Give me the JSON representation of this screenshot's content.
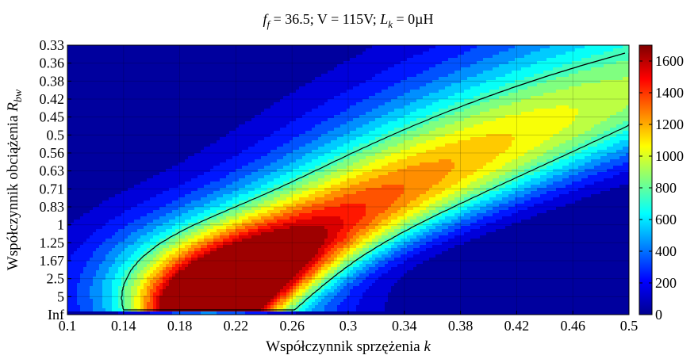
{
  "chart_data": {
    "type": "heatmap",
    "title": {
      "parts": [
        "f",
        "f",
        " = 36.5; V = 115V;  ",
        "L",
        "k",
        " = 0µH"
      ]
    },
    "xlabel": {
      "main": "Współczynnik sprzężenia",
      "symbol": "k"
    },
    "ylabel": {
      "main": "Współczynnik obciążenia",
      "symbol": "R",
      "subscript": "bw"
    },
    "x_ticks": [
      "0.1",
      "0.14",
      "0.18",
      "0.22",
      "0.26",
      "0.3",
      "0.34",
      "0.38",
      "0.42",
      "0.46",
      "0.5"
    ],
    "x_range": [
      0.1,
      0.5
    ],
    "y_ticks": [
      "0.33",
      "0.36",
      "0.38",
      "0.42",
      "0.45",
      "0.5",
      "0.56",
      "0.63",
      "0.71",
      "0.83",
      "1",
      "1.25",
      "1.67",
      "2.5",
      "5",
      "Inf"
    ],
    "colorbar": {
      "range": [
        0,
        1700
      ],
      "ticks": [
        0,
        200,
        400,
        600,
        800,
        1000,
        1200,
        1400,
        1600
      ],
      "colormap": "jet"
    },
    "contour_levels": [
      0,
      100,
      200,
      300,
      400,
      500,
      600,
      700,
      800,
      900,
      1000,
      1100,
      1200,
      1300,
      1400,
      1500,
      1600
    ],
    "highlighted_contour": 750,
    "peak": {
      "k": 0.2,
      "R_bw": "5",
      "value": 1700
    },
    "grid": true
  }
}
